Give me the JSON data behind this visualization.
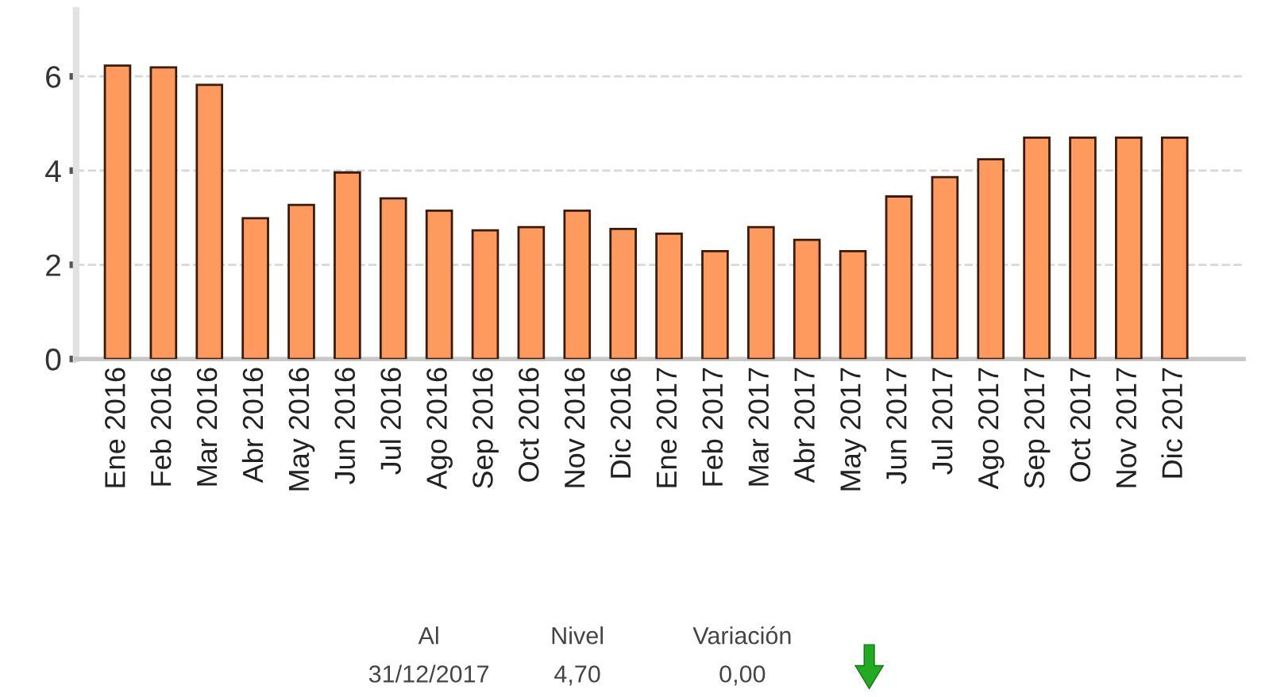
{
  "chart_data": {
    "type": "bar",
    "categories": [
      "Ene 2016",
      "Feb 2016",
      "Mar 2016",
      "Abr 2016",
      "May 2016",
      "Jun 2016",
      "Jul 2016",
      "Ago 2016",
      "Sep 2016",
      "Oct 2016",
      "Nov 2016",
      "Dic 2016",
      "Ene 2017",
      "Feb 2017",
      "Mar 2017",
      "Abr 2017",
      "May 2017",
      "Jun 2017",
      "Jul 2017",
      "Ago 2017",
      "Sep 2017",
      "Oct 2017",
      "Nov 2017",
      "Dic 2017"
    ],
    "values": [
      6.23,
      6.19,
      5.82,
      2.99,
      3.27,
      3.96,
      3.41,
      3.15,
      2.73,
      2.8,
      3.15,
      2.76,
      2.66,
      2.29,
      2.8,
      2.53,
      2.29,
      3.45,
      3.86,
      4.24,
      4.7,
      4.7,
      4.7,
      4.7
    ],
    "color": "#ff9a5e",
    "ylim": [
      0,
      7.4
    ],
    "yticks": [
      0,
      2,
      4,
      6
    ],
    "grid": "y",
    "annotations": [
      "Al",
      "Nivel",
      "Variación",
      "31/12/2017",
      "4,70",
      "0,00"
    ]
  }
}
